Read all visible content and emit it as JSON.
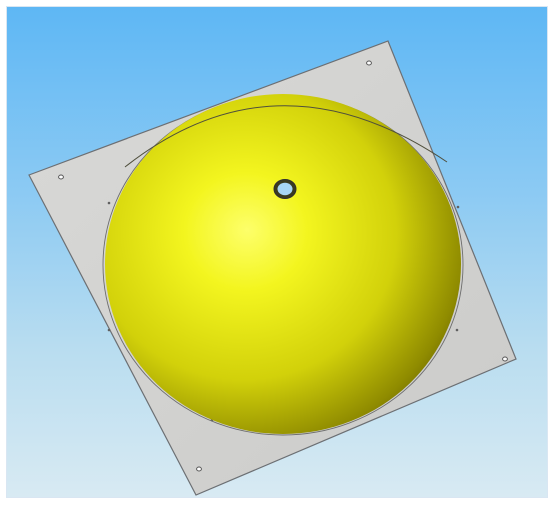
{
  "scene": {
    "view": "isometric",
    "background_gradient": [
      "#5eb7f4",
      "#d8eaf3"
    ],
    "plate": {
      "color": "#d3d3d1",
      "edge_color": "#6c6f73",
      "mounting_holes": 4
    },
    "dome": {
      "highlight_color": "#fbff3a",
      "body_color": "#e6e60a",
      "shadow_color": "#4a4500",
      "top_holes": 1
    }
  }
}
